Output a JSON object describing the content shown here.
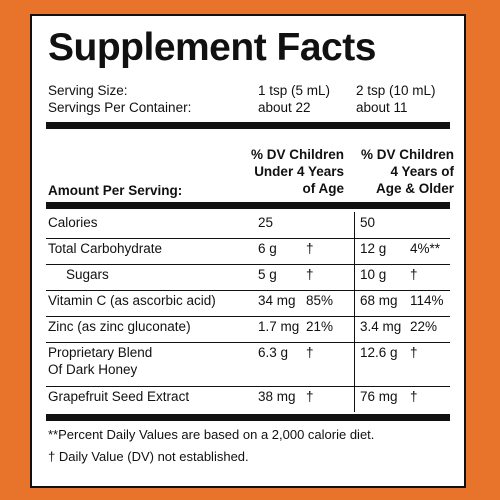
{
  "title": "Supplement Facts",
  "serving": [
    {
      "label": "Serving Size:",
      "col1": "1 tsp (5 mL)",
      "col2": "2 tsp (10 mL)"
    },
    {
      "label": "Servings Per Container:",
      "col1": "about 22",
      "col2": "about 11"
    }
  ],
  "header": {
    "amount": "Amount Per Serving:",
    "col1": "% DV Children\nUnder 4 Years\nof Age",
    "col2": "% DV Children\n4 Years of\nAge & Older"
  },
  "rows": [
    {
      "name": "Calories",
      "amt1": "25",
      "dv1": "",
      "amt2": "50",
      "dv2": ""
    },
    {
      "name": "Total Carbohydrate",
      "amt1": "6 g",
      "dv1": "†",
      "amt2": "12 g",
      "dv2": "4%**"
    },
    {
      "name": "Sugars",
      "amt1": "5 g",
      "dv1": "†",
      "amt2": "10 g",
      "dv2": "†"
    },
    {
      "name": "Vitamin C (as ascorbic acid)",
      "amt1": "34 mg",
      "dv1": "85%",
      "amt2": "68 mg",
      "dv2": "114%"
    },
    {
      "name": "Zinc (as zinc gluconate)",
      "amt1": "1.7 mg",
      "dv1": "21%",
      "amt2": "3.4 mg",
      "dv2": "22%"
    },
    {
      "name": "Proprietary Blend\nOf Dark Honey",
      "amt1": "6.3 g",
      "dv1": "†",
      "amt2": "12.6 g",
      "dv2": "†"
    },
    {
      "name": "Grapefruit Seed Extract",
      "amt1": "38 mg",
      "dv1": "†",
      "amt2": "76 mg",
      "dv2": "†"
    }
  ],
  "footnotes": [
    "**Percent Daily Values are based on a 2,000 calorie diet.",
    "† Daily Value (DV) not established."
  ]
}
